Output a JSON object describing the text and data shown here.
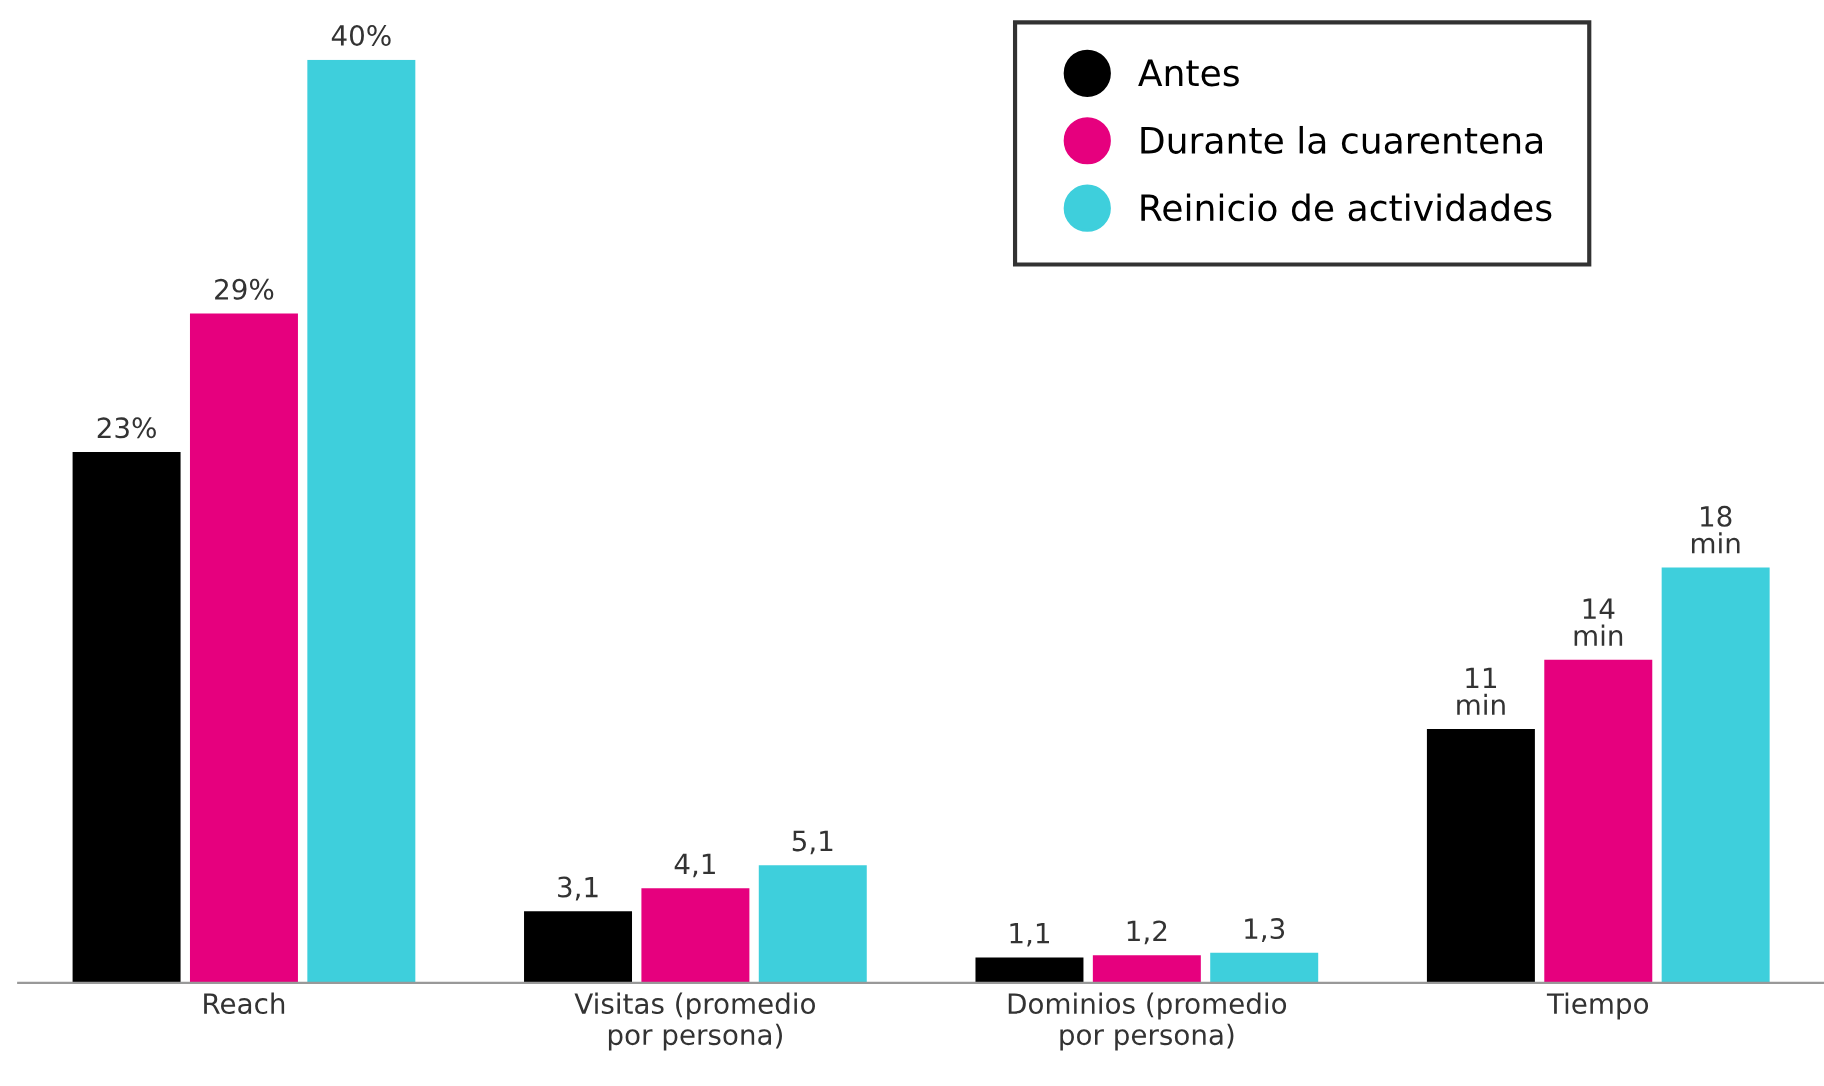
{
  "chart_data": {
    "type": "bar",
    "categories": [
      "Reach",
      "Visitas (promedio\npor persona)",
      "Dominios (promedio\npor persona)",
      "Tiempo"
    ],
    "series": [
      {
        "name": "Antes",
        "color": "#000000",
        "values": [
          23,
          3.1,
          1.1,
          11
        ],
        "value_labels": [
          "23%",
          "3,1",
          "1,1",
          "11\nmin"
        ]
      },
      {
        "name": "Durante la cuarentena",
        "color": "#e6007e",
        "values": [
          29,
          4.1,
          1.2,
          14
        ],
        "value_labels": [
          "29%",
          "4,1",
          "1,2",
          "14\nmin"
        ]
      },
      {
        "name": "Reinicio de actividades",
        "color": "#3ecfdc",
        "values": [
          40,
          5.1,
          1.3,
          18
        ],
        "value_labels": [
          "40%",
          "5,1",
          "1,3",
          "18\nmin"
        ]
      }
    ],
    "legend": "top right",
    "grid": false
  }
}
